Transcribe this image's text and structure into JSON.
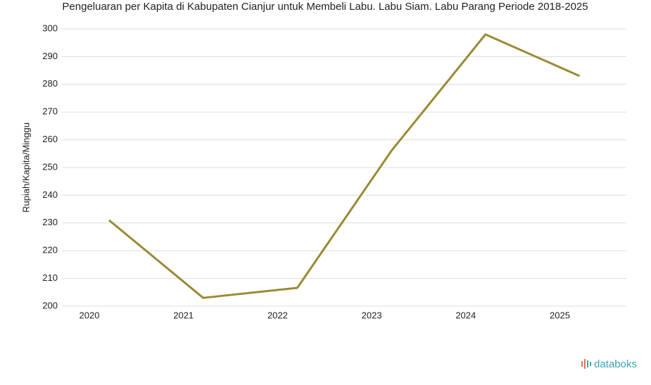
{
  "chart_data": {
    "type": "line",
    "title": "Pengeluaran per Kapita di Kabupaten Cianjur untuk Membeli Labu. Labu Siam. Labu Parang Periode 2018-2025",
    "y_label": "Rupiah/Kapita/Minggu",
    "categories": [
      "2020",
      "2021",
      "2022",
      "2023",
      "2024",
      "2025"
    ],
    "values": [
      231,
      203,
      206.6,
      256,
      298,
      283
    ],
    "color": "#9a8a35",
    "ylim": [
      200,
      300
    ],
    "yticks": [
      200,
      210,
      220,
      230,
      240,
      250,
      260,
      270,
      280,
      290,
      300
    ],
    "grid": true
  },
  "brand": "databoks"
}
